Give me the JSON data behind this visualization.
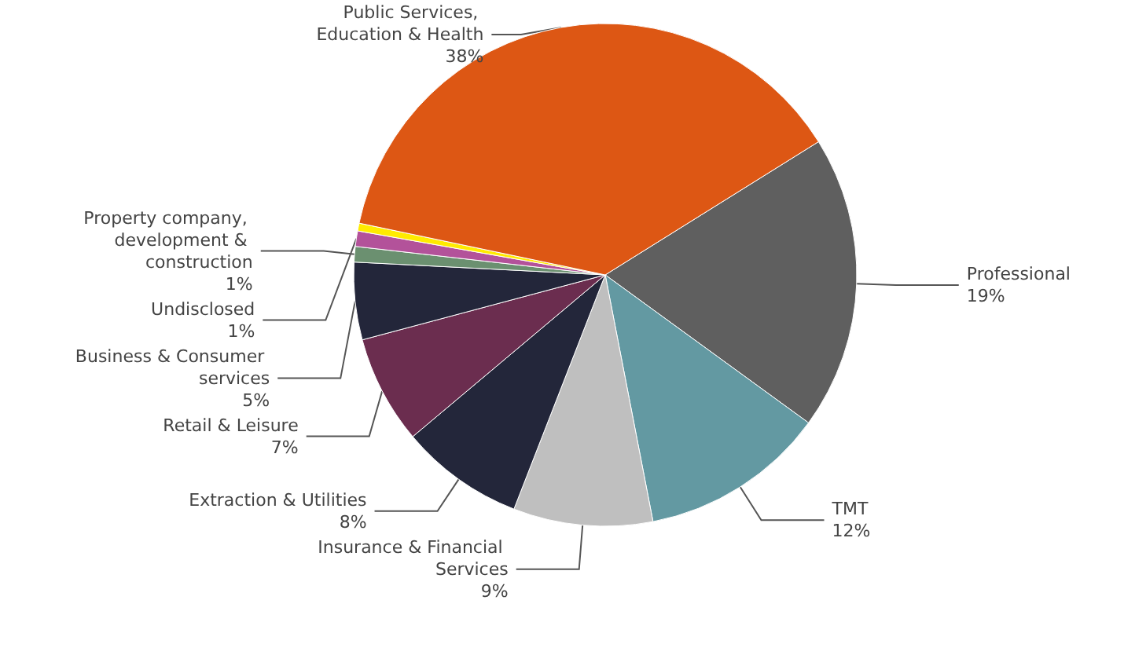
{
  "chart_data": {
    "type": "pie",
    "categories": [
      "Professional",
      "TMT",
      "Insurance & Financial Services",
      "Extraction & Utilities",
      "Retail & Leisure",
      "Business & Consumer services",
      "Property company, development & construction",
      "Undisclosed",
      null,
      "Public Services, Education & Health"
    ],
    "values": [
      19,
      12,
      9,
      8,
      7,
      5,
      1,
      1,
      0.5,
      38
    ],
    "value_labels": [
      "19%",
      "12%",
      "9%",
      "8%",
      "7%",
      "5%",
      "1%",
      "1%",
      null,
      "38%"
    ],
    "colors": [
      "#5f5f5f",
      "#6399a2",
      "#bfbfbf",
      "#23263a",
      "#6b2d4f",
      "#23263a",
      "#6b9070",
      "#b3529a",
      "#ffeb00",
      "#dd5714"
    ]
  }
}
